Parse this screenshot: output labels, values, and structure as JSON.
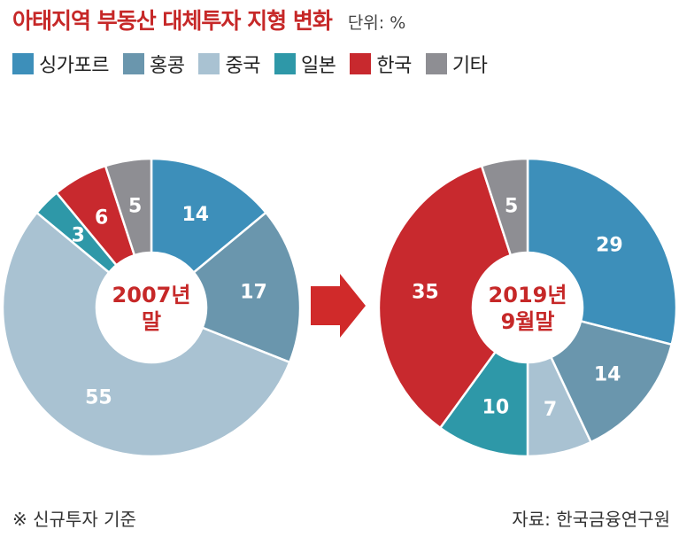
{
  "title": "아태지역 부동산 대체투자 지형 변화",
  "unit": "단위: %",
  "footnote": "※ 신규투자 기준",
  "source": "자료: 한국금융연구원",
  "colors": {
    "싱가포르": "#3d8fba",
    "홍콩": "#6a96ad",
    "중국": "#a9c2d2",
    "일본": "#2e98a8",
    "한국": "#c8292e",
    "기타": "#8e8e93",
    "arrow": "#d02a2a",
    "center_text": "#c62828"
  },
  "chart_data": [
    {
      "type": "pie",
      "center_label": [
        "2007년",
        "말"
      ],
      "categories": [
        "싱가포르",
        "홍콩",
        "중국",
        "일본",
        "한국",
        "기타"
      ],
      "values": [
        14,
        17,
        55,
        3,
        6,
        5
      ],
      "donut": true,
      "start": "12 o'clock",
      "direction": "clockwise"
    },
    {
      "type": "pie",
      "center_label": [
        "2019년",
        "9월말"
      ],
      "categories": [
        "싱가포르",
        "홍콩",
        "중국",
        "일본",
        "한국",
        "기타"
      ],
      "values": [
        29,
        14,
        7,
        10,
        35,
        5
      ],
      "donut": true,
      "start": "12 o'clock",
      "direction": "clockwise"
    }
  ]
}
